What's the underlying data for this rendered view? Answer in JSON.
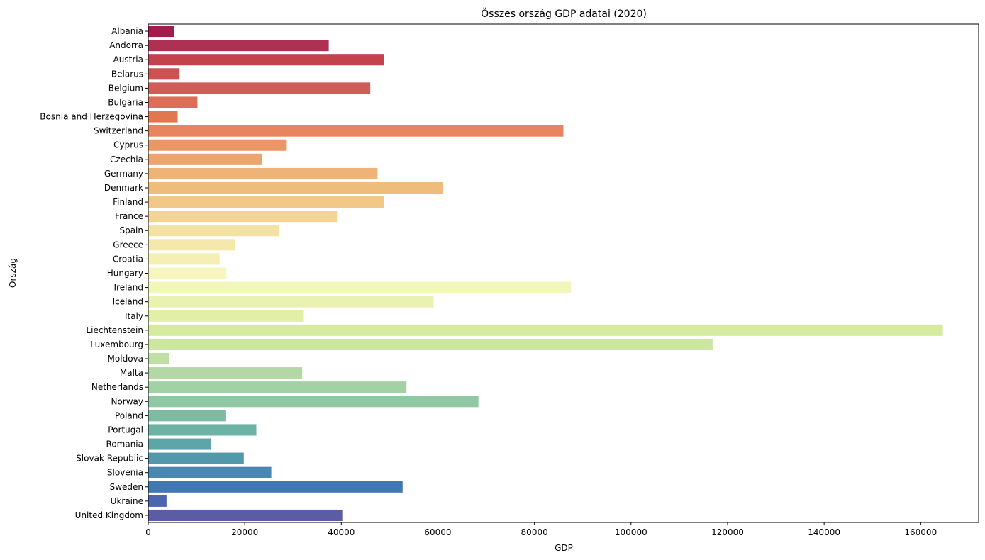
{
  "chart_data": {
    "type": "bar",
    "orientation": "horizontal",
    "title": "Összes ország GDP adatai (2020)",
    "xlabel": "GDP",
    "ylabel": "Ország",
    "xlim": [
      0,
      172000
    ],
    "xticks": [
      0,
      20000,
      40000,
      60000,
      80000,
      100000,
      120000,
      140000,
      160000
    ],
    "grid": false,
    "palette": "Spectral",
    "categories": [
      "Albania",
      "Andorra",
      "Austria",
      "Belarus",
      "Belgium",
      "Bulgaria",
      "Bosnia and Herzegovina",
      "Switzerland",
      "Cyprus",
      "Czechia",
      "Germany",
      "Denmark",
      "Finland",
      "France",
      "Spain",
      "Greece",
      "Croatia",
      "Hungary",
      "Ireland",
      "Iceland",
      "Italy",
      "Liechtenstein",
      "Luxembourg",
      "Moldova",
      "Malta",
      "Netherlands",
      "Norway",
      "Poland",
      "Portugal",
      "Romania",
      "Slovak Republic",
      "Slovenia",
      "Sweden",
      "Ukraine",
      "United Kingdom"
    ],
    "values": [
      5300,
      37400,
      48800,
      6500,
      46000,
      10200,
      6100,
      86000,
      28700,
      23500,
      47500,
      61000,
      48800,
      39100,
      27200,
      18000,
      14800,
      16200,
      87600,
      59100,
      32100,
      164600,
      116900,
      4400,
      31900,
      53500,
      68400,
      16000,
      22400,
      13000,
      19800,
      25500,
      52700,
      3800,
      40200
    ],
    "colors": [
      "#a01c4a",
      "#ae3153",
      "#c2434e",
      "#cc5252",
      "#d15b58",
      "#dc6d57",
      "#e2764f",
      "#e8855f",
      "#ea9767",
      "#eda56f",
      "#eeb377",
      "#efbd7b",
      "#f1c887",
      "#f2d596",
      "#f4e1a4",
      "#f5e8ac",
      "#f6efb5",
      "#f8f6bf",
      "#f1f6ba",
      "#e9f2b0",
      "#e1efa7",
      "#d7eba0",
      "#cce5a0",
      "#bfdfa3",
      "#b3d8a6",
      "#a2d1a5",
      "#90c8a4",
      "#7ebba3",
      "#6cb2a5",
      "#5ea5a8",
      "#5397aa",
      "#4a88b0",
      "#4278b1",
      "#4b66ac",
      "#5b5da4"
    ]
  }
}
